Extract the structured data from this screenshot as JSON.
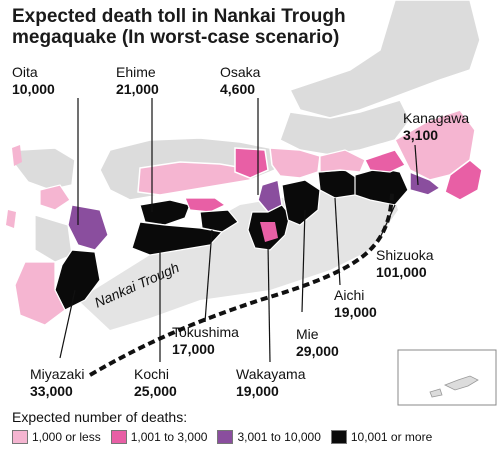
{
  "title_line1": "Expected death toll in Nankai Trough",
  "title_line2": "megaquake (In worst-case scenario)",
  "trough_label": "Nankai Trough",
  "labels": [
    {
      "name": "Oita",
      "value": "10,000"
    },
    {
      "name": "Ehime",
      "value": "21,000"
    },
    {
      "name": "Osaka",
      "value": "4,600"
    },
    {
      "name": "Kanagawa",
      "value": "3,100"
    },
    {
      "name": "Shizuoka",
      "value": "101,000"
    },
    {
      "name": "Aichi",
      "value": "19,000"
    },
    {
      "name": "Mie",
      "value": "29,000"
    },
    {
      "name": "Tokushima",
      "value": "17,000"
    },
    {
      "name": "Wakayama",
      "value": "19,000"
    },
    {
      "name": "Kochi",
      "value": "25,000"
    },
    {
      "name": "Miyazaki",
      "value": "33,000"
    }
  ],
  "legend": {
    "title": "Expected number of deaths:",
    "items": [
      {
        "label": "1,000 or less",
        "color": "#f5b5d1"
      },
      {
        "label": "1,001 to 3,000",
        "color": "#e85fa5"
      },
      {
        "label": "3,001 to 10,000",
        "color": "#8a4e9e"
      },
      {
        "label": "10,001 or more",
        "color": "#0a0a0a"
      }
    ]
  },
  "colors": {
    "land_unaffected": "#dcdcdc",
    "borders": "#ffffff",
    "trough_zone": "#e6e6e6"
  }
}
